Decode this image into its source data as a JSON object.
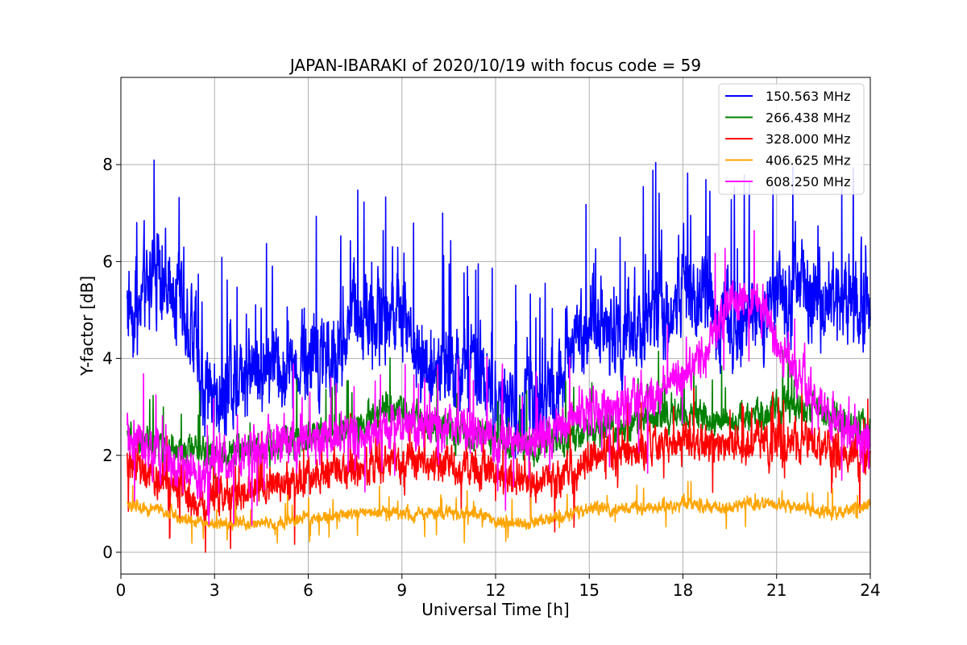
{
  "chart_data": {
    "type": "line",
    "title": "JAPAN-IBARAKI of 2020/10/19 with focus code = 59",
    "xlabel": "Universal Time [h]",
    "ylabel": "Y-factor [dB]",
    "xlim": [
      0,
      24
    ],
    "ylim": [
      -0.45,
      9.8
    ],
    "xticks": [
      0,
      3,
      6,
      9,
      12,
      15,
      18,
      21,
      24
    ],
    "yticks": [
      0,
      2,
      4,
      6,
      8
    ],
    "grid": true,
    "legend_position": "top-right",
    "x_start": 0.2,
    "x_end": 24,
    "series": [
      {
        "name": "150.563 MHz",
        "color": "#0000ff",
        "base": [
          [
            0.2,
            5.2
          ],
          [
            0.5,
            5.1
          ],
          [
            1,
            5.8
          ],
          [
            1.5,
            5.6
          ],
          [
            2,
            5.0
          ],
          [
            2.4,
            4.4
          ],
          [
            2.6,
            3.2
          ],
          [
            3,
            3.3
          ],
          [
            4,
            3.7
          ],
          [
            5,
            3.9
          ],
          [
            6,
            3.9
          ],
          [
            6.8,
            4.0
          ],
          [
            7.3,
            4.8
          ],
          [
            8,
            4.9
          ],
          [
            9,
            4.8
          ],
          [
            9.5,
            4.2
          ],
          [
            10,
            3.8
          ],
          [
            11,
            3.7
          ],
          [
            12,
            3.3
          ],
          [
            12.5,
            2.8
          ],
          [
            13,
            3.0
          ],
          [
            13.8,
            3.3
          ],
          [
            14.5,
            4.2
          ],
          [
            15,
            4.6
          ],
          [
            16,
            4.6
          ],
          [
            17,
            4.8
          ],
          [
            18,
            5.3
          ],
          [
            19,
            5.0
          ],
          [
            20,
            4.9
          ],
          [
            21,
            5.2
          ],
          [
            22,
            5.3
          ],
          [
            23,
            5.2
          ],
          [
            24,
            5.1
          ]
        ],
        "amp": 0.75,
        "spike": 1.8,
        "spike_prob": 0.04,
        "dip_prob": 0.0
      },
      {
        "name": "266.438 MHz",
        "color": "#008000",
        "base": [
          [
            0.2,
            2.4
          ],
          [
            1,
            2.2
          ],
          [
            2,
            2.1
          ],
          [
            3,
            2.0
          ],
          [
            4,
            2.1
          ],
          [
            6,
            2.4
          ],
          [
            7.5,
            2.6
          ],
          [
            8.5,
            3.0
          ],
          [
            9,
            2.9
          ],
          [
            10,
            2.6
          ],
          [
            11,
            2.5
          ],
          [
            12,
            2.3
          ],
          [
            13,
            2.1
          ],
          [
            14,
            2.3
          ],
          [
            15,
            2.5
          ],
          [
            16,
            2.6
          ],
          [
            17,
            2.8
          ],
          [
            18,
            2.9
          ],
          [
            19,
            2.7
          ],
          [
            20,
            2.8
          ],
          [
            21,
            3.0
          ],
          [
            22,
            3.0
          ],
          [
            23,
            2.8
          ],
          [
            24,
            2.5
          ]
        ],
        "amp": 0.25,
        "spike": 0.8,
        "spike_prob": 0.02,
        "dip_prob": 0.0
      },
      {
        "name": "328.000 MHz",
        "color": "#ff0000",
        "base": [
          [
            0.2,
            1.8
          ],
          [
            1,
            1.6
          ],
          [
            2,
            1.3
          ],
          [
            2.6,
            1.0
          ],
          [
            3,
            1.2
          ],
          [
            4,
            1.3
          ],
          [
            5,
            1.4
          ],
          [
            6,
            1.5
          ],
          [
            7,
            1.7
          ],
          [
            8,
            1.8
          ],
          [
            9,
            1.9
          ],
          [
            10,
            1.8
          ],
          [
            11,
            1.8
          ],
          [
            12,
            1.6
          ],
          [
            13,
            1.4
          ],
          [
            14,
            1.5
          ],
          [
            15,
            1.9
          ],
          [
            16,
            2.1
          ],
          [
            17,
            2.1
          ],
          [
            18,
            2.3
          ],
          [
            19,
            2.2
          ],
          [
            20,
            2.2
          ],
          [
            21,
            2.3
          ],
          [
            22,
            2.3
          ],
          [
            23,
            2.0
          ],
          [
            24,
            1.8
          ]
        ],
        "amp": 0.3,
        "spike": 0.7,
        "spike_prob": 0.025,
        "dip_prob": 0.015
      },
      {
        "name": "406.625 MHz",
        "color": "#ffa500",
        "base": [
          [
            0.2,
            1.0
          ],
          [
            1,
            0.9
          ],
          [
            2,
            0.7
          ],
          [
            3,
            0.6
          ],
          [
            5,
            0.6
          ],
          [
            6,
            0.7
          ],
          [
            8,
            0.8
          ],
          [
            10,
            0.8
          ],
          [
            11.5,
            0.8
          ],
          [
            12,
            0.6
          ],
          [
            13,
            0.6
          ],
          [
            14,
            0.7
          ],
          [
            15,
            0.9
          ],
          [
            16,
            0.9
          ],
          [
            17,
            0.9
          ],
          [
            18,
            1.0
          ],
          [
            19,
            0.9
          ],
          [
            20,
            1.0
          ],
          [
            21,
            1.0
          ],
          [
            22,
            0.9
          ],
          [
            23,
            0.8
          ],
          [
            24,
            1.0
          ]
        ],
        "amp": 0.1,
        "spike": 0.35,
        "spike_prob": 0.015,
        "dip_prob": 0.01
      },
      {
        "name": "608.250 MHz",
        "color": "#ff00ff",
        "base": [
          [
            0.2,
            2.4
          ],
          [
            1,
            2.0
          ],
          [
            2,
            1.7
          ],
          [
            2.6,
            1.5
          ],
          [
            3,
            1.8
          ],
          [
            4,
            2.1
          ],
          [
            5,
            2.2
          ],
          [
            6,
            2.3
          ],
          [
            7,
            2.4
          ],
          [
            8,
            2.5
          ],
          [
            9,
            2.6
          ],
          [
            10,
            2.6
          ],
          [
            11,
            2.6
          ],
          [
            12,
            2.3
          ],
          [
            13,
            2.2
          ],
          [
            14,
            2.6
          ],
          [
            15,
            2.9
          ],
          [
            16,
            3.0
          ],
          [
            17,
            3.3
          ],
          [
            18,
            3.6
          ],
          [
            18.6,
            4.0
          ],
          [
            19,
            4.6
          ],
          [
            19.5,
            5.2
          ],
          [
            20,
            5.3
          ],
          [
            20.5,
            5.2
          ],
          [
            21,
            4.4
          ],
          [
            22,
            3.3
          ],
          [
            23,
            2.6
          ],
          [
            24,
            2.4
          ]
        ],
        "amp": 0.35,
        "spike": 0.9,
        "spike_prob": 0.02,
        "dip_prob": 0.015
      }
    ]
  }
}
